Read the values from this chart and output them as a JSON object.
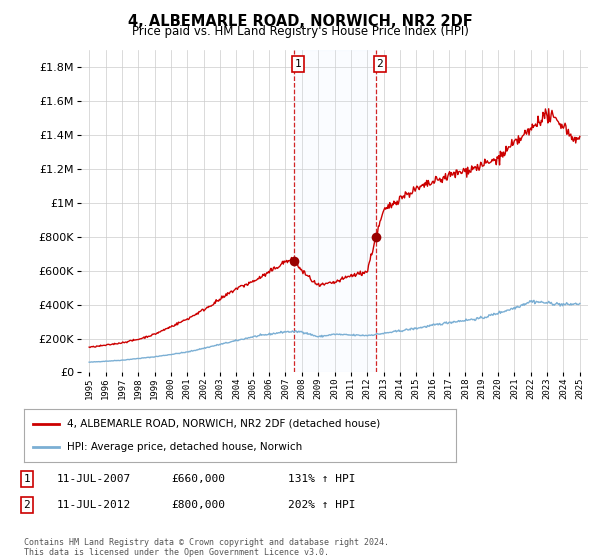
{
  "title": "4, ALBEMARLE ROAD, NORWICH, NR2 2DF",
  "subtitle": "Price paid vs. HM Land Registry's House Price Index (HPI)",
  "legend_line1": "4, ALBEMARLE ROAD, NORWICH, NR2 2DF (detached house)",
  "legend_line2": "HPI: Average price, detached house, Norwich",
  "transaction1_date": "11-JUL-2007",
  "transaction1_price": 660000,
  "transaction1_pct": "131% ↑ HPI",
  "transaction2_date": "11-JUL-2012",
  "transaction2_price": 800000,
  "transaction2_pct": "202% ↑ HPI",
  "footer": "Contains HM Land Registry data © Crown copyright and database right 2024.\nThis data is licensed under the Open Government Licence v3.0.",
  "hpi_color": "#7bafd4",
  "property_color": "#cc0000",
  "marker_color": "#990000",
  "transaction_x1": 2007.53,
  "transaction_x2": 2012.53,
  "ylim_max": 1900000,
  "xlim_min": 1994.5,
  "xlim_max": 2025.5,
  "background_color": "#ffffff",
  "grid_color": "#cccccc",
  "shade_color": "#ddeeff",
  "yticks": [
    0,
    200000,
    400000,
    600000,
    800000,
    1000000,
    1200000,
    1400000,
    1600000,
    1800000
  ]
}
